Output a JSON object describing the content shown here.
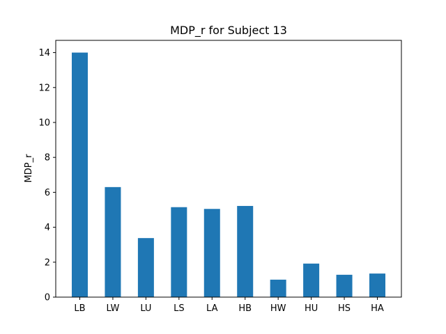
{
  "chart_data": {
    "type": "bar",
    "title": "MDP_r for Subject 13",
    "xlabel": "",
    "ylabel": "MDP_r",
    "categories": [
      "LB",
      "LW",
      "LU",
      "LS",
      "LA",
      "HB",
      "HW",
      "HU",
      "HS",
      "HA"
    ],
    "values": [
      14.0,
      6.3,
      3.38,
      5.15,
      5.05,
      5.22,
      1.0,
      1.92,
      1.28,
      1.35
    ],
    "ylim": [
      0,
      14.7
    ],
    "yticks": [
      0,
      2,
      4,
      6,
      8,
      10,
      12,
      14
    ],
    "ytick_labels": [
      "0",
      "2",
      "4",
      "6",
      "8",
      "10",
      "12",
      "14"
    ],
    "grid": false,
    "legend": "none",
    "colors": {
      "bar": "#1f77b4",
      "axis": "#000000",
      "background": "#ffffff"
    }
  }
}
